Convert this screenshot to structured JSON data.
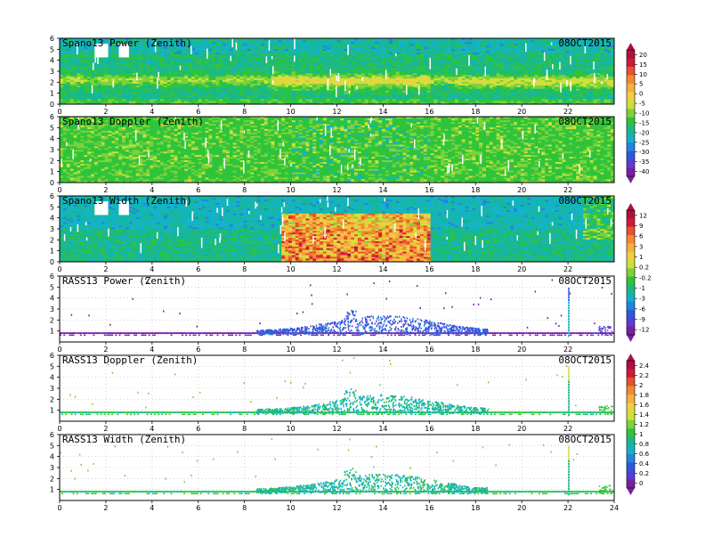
{
  "colors": {
    "scale": [
      "#7a1fa2",
      "#5a3cd6",
      "#2f58e0",
      "#1f86e0",
      "#12b3c8",
      "#19b88a",
      "#2ec43a",
      "#7dd23a",
      "#cfe03a",
      "#f0d040",
      "#f5b040",
      "#f28a30",
      "#e8502e",
      "#d01a38",
      "#b01040"
    ],
    "background": "#ffffff",
    "gap": "#ffffff"
  },
  "chart_data": [
    {
      "type": "heatmap",
      "title": "Spano13 Power (Zenith)",
      "date": "08OCT2015",
      "x": {
        "range": [
          0,
          24
        ],
        "ticks": [
          0,
          2,
          4,
          6,
          8,
          10,
          12,
          14,
          16,
          18,
          20,
          22
        ]
      },
      "y": {
        "range": [
          0,
          6
        ],
        "ticks": [
          0,
          1,
          2,
          3,
          4,
          5,
          6
        ]
      },
      "field": "spano_power"
    },
    {
      "type": "heatmap",
      "title": "Spano13 Doppler (Zenith)",
      "date": "08OCT2015",
      "x": {
        "range": [
          0,
          24
        ],
        "ticks": [
          0,
          2,
          4,
          6,
          8,
          10,
          12,
          14,
          16,
          18,
          20,
          22
        ]
      },
      "y": {
        "range": [
          0,
          6
        ],
        "ticks": [
          0,
          1,
          2,
          3,
          4,
          5,
          6
        ]
      },
      "field": "spano_doppler"
    },
    {
      "type": "heatmap",
      "title": "Spano13 Width (Zenith)",
      "date": "08OCT2015",
      "x": {
        "range": [
          0,
          24
        ],
        "ticks": [
          0,
          2,
          4,
          6,
          8,
          10,
          12,
          14,
          16,
          18,
          20,
          22
        ]
      },
      "y": {
        "range": [
          0,
          6
        ],
        "ticks": [
          0,
          1,
          2,
          3,
          4,
          5,
          6
        ]
      },
      "field": "spano_width"
    },
    {
      "type": "scatter",
      "title": "RASS13 Power (Zenith)",
      "date": "08OCT2015",
      "x": {
        "range": [
          0,
          24
        ],
        "ticks": [
          0,
          2,
          4,
          6,
          8,
          10,
          12,
          14,
          16,
          18,
          20,
          22
        ]
      },
      "y": {
        "range": [
          0,
          6
        ],
        "ticks": [
          1,
          2,
          3,
          4,
          5,
          6
        ]
      },
      "field": "rass_power"
    },
    {
      "type": "scatter",
      "title": "RASS13 Doppler (Zenith)",
      "date": "08OCT2015",
      "x": {
        "range": [
          0,
          24
        ],
        "ticks": [
          0,
          2,
          4,
          6,
          8,
          10,
          12,
          14,
          16,
          18,
          20,
          22
        ]
      },
      "y": {
        "range": [
          0,
          6
        ],
        "ticks": [
          1,
          2,
          3,
          4,
          5,
          6
        ]
      },
      "field": "rass_doppler"
    },
    {
      "type": "scatter",
      "title": "RASS13 Width (Zenith)",
      "date": "08OCT2015",
      "x": {
        "range": [
          0,
          24
        ],
        "ticks": [
          0,
          2,
          4,
          6,
          8,
          10,
          12,
          14,
          16,
          18,
          20,
          22,
          24
        ]
      },
      "y": {
        "range": [
          0,
          6
        ],
        "ticks": [
          1,
          2,
          3,
          4,
          5,
          6
        ]
      },
      "field": "rass_width"
    }
  ],
  "colorbars": [
    {
      "name": "power",
      "labels": [
        "20",
        "15",
        "10",
        "5",
        "0",
        "-5",
        "-10",
        "-15",
        "-20",
        "-25",
        "-30",
        "-35",
        "-40"
      ]
    },
    {
      "name": "width",
      "labels": [
        "12",
        "9",
        "6",
        "3",
        "1",
        "0.2",
        "-0.2",
        "-1",
        "-3",
        "-6",
        "-9",
        "-12"
      ]
    },
    {
      "name": "doppler",
      "labels": [
        "2.4",
        "2.2",
        "2",
        "1.8",
        "1.6",
        "1.4",
        "1.2",
        "1",
        "0.8",
        "0.6",
        "0.4",
        "0.2",
        "0"
      ]
    }
  ]
}
